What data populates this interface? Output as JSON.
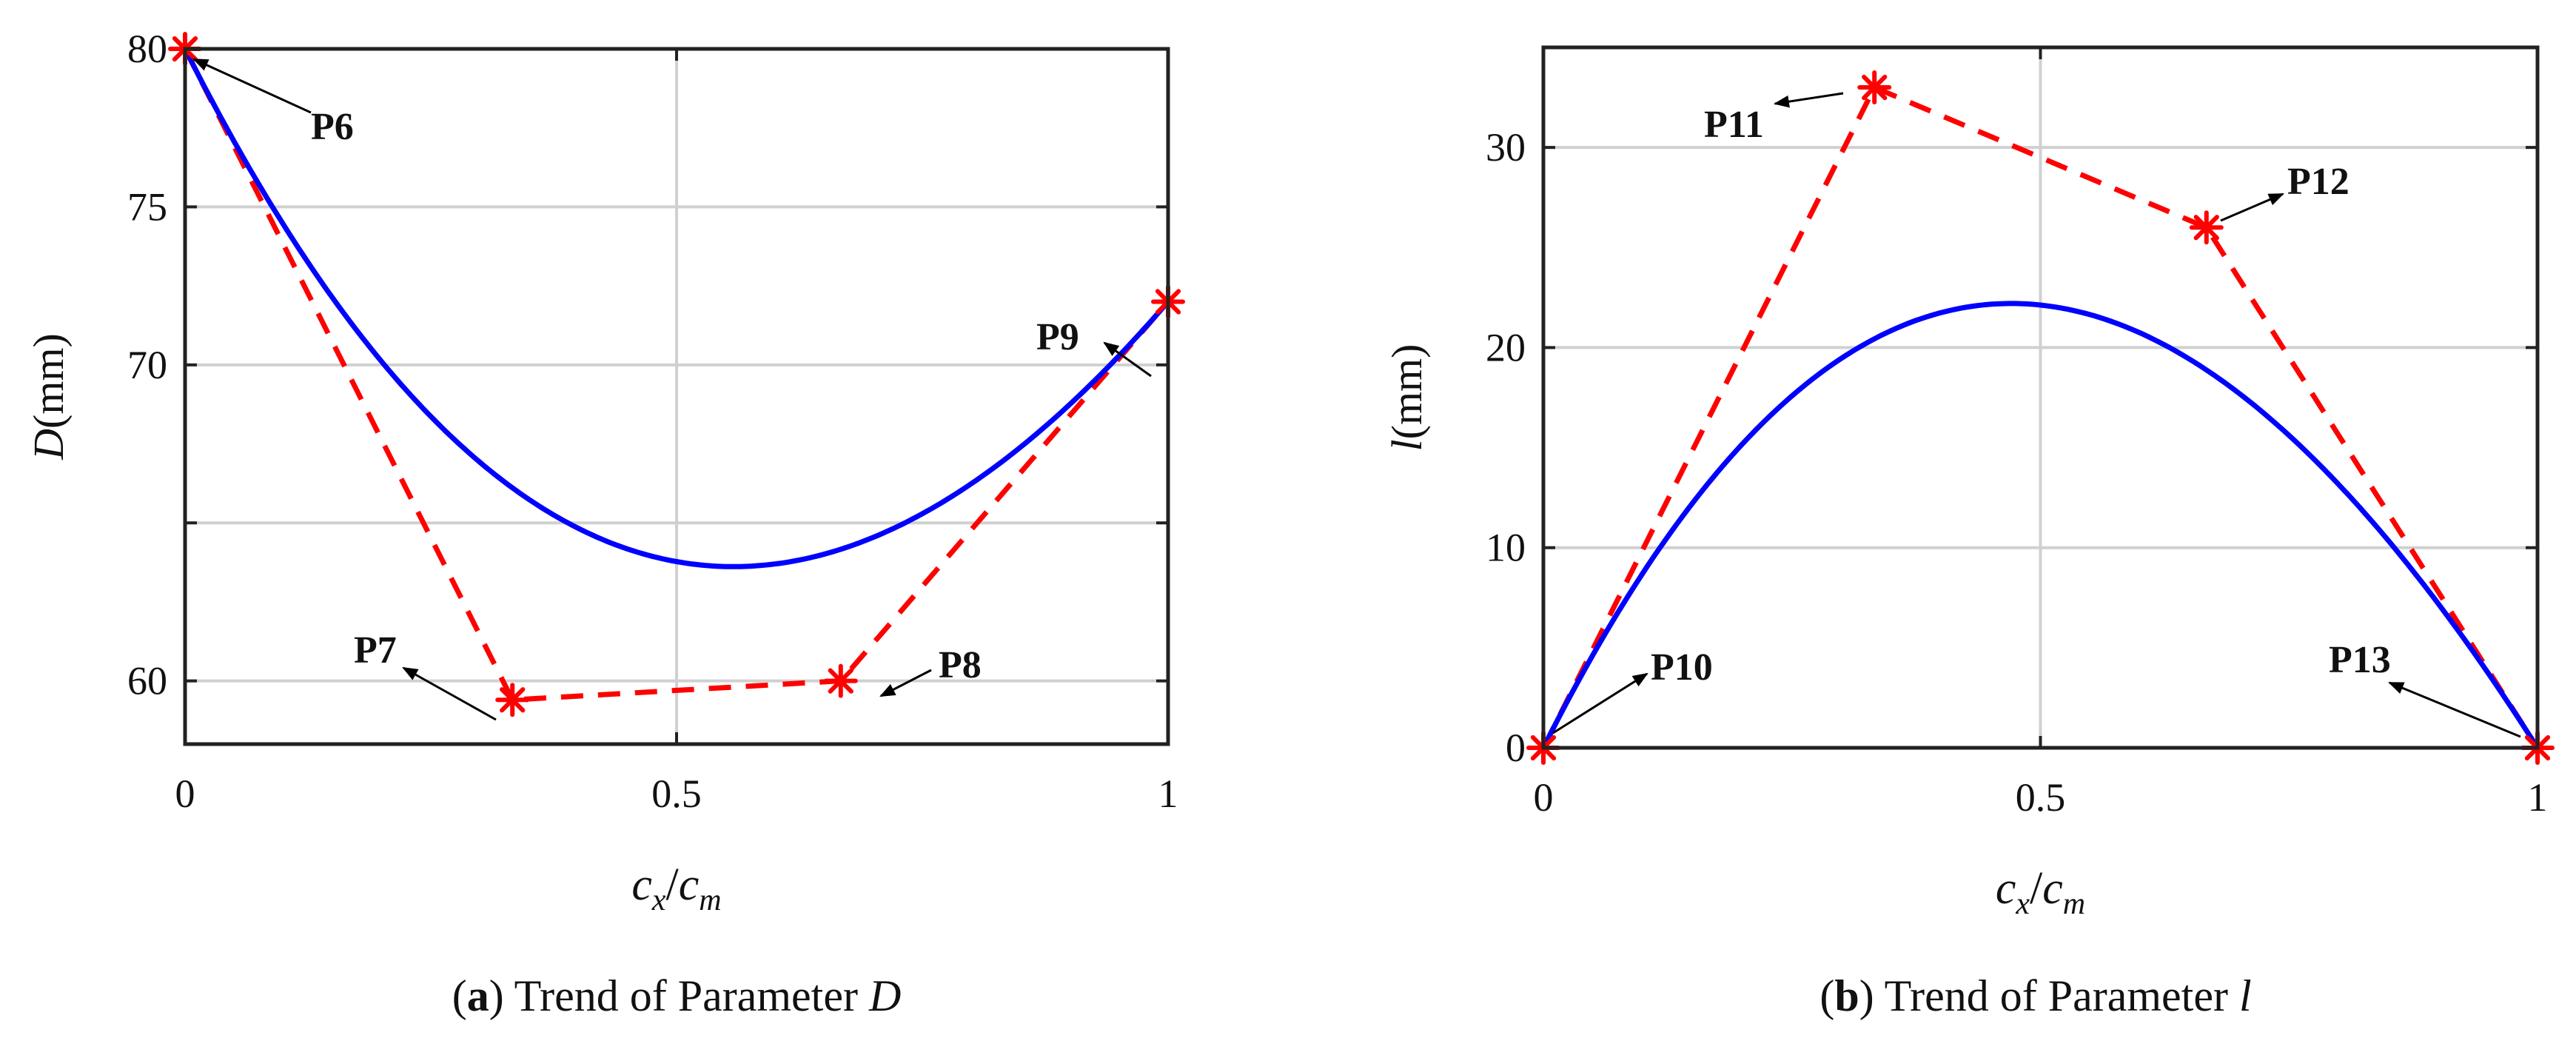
{
  "chart_data": [
    {
      "type": "line",
      "caption": {
        "letter": "a",
        "text": "Trend of Parameter",
        "param": "D"
      },
      "xlabel": {
        "base": "c",
        "sub": "x",
        "sep": "/",
        "base2": "c",
        "sub2": "m"
      },
      "ylabel": {
        "var": "D",
        "unit": "(mm)"
      },
      "xlim": [
        0,
        1
      ],
      "ylim": [
        58,
        80
      ],
      "xticks": [
        0,
        0.5,
        1
      ],
      "xtick_labels": [
        "0",
        "0.5",
        "1"
      ],
      "yticks": [
        60,
        65,
        70,
        75,
        80
      ],
      "ytick_labels": [
        "60",
        "",
        "70",
        "75",
        "80"
      ],
      "grid": true,
      "control_points": [
        {
          "name": "P6",
          "x": 0,
          "y": 80
        },
        {
          "name": "P7",
          "x": 0.333,
          "y": 59.4
        },
        {
          "name": "P8",
          "x": 0.667,
          "y": 60
        },
        {
          "name": "P9",
          "x": 1,
          "y": 72
        }
      ],
      "series": [
        {
          "name": "control polygon",
          "style": "dashed",
          "color": "#ff0000"
        },
        {
          "name": "Bezier curve",
          "style": "solid",
          "color": "#0000ff"
        }
      ]
    },
    {
      "type": "line",
      "caption": {
        "letter": "b",
        "text": "Trend of Parameter",
        "param": "l"
      },
      "xlabel": {
        "base": "c",
        "sub": "x",
        "sep": "/",
        "base2": "c",
        "sub2": "m"
      },
      "ylabel": {
        "var": "l",
        "unit": "(mm)"
      },
      "xlim": [
        0,
        1
      ],
      "ylim": [
        0,
        35
      ],
      "xticks": [
        0,
        0.5,
        1
      ],
      "xtick_labels": [
        "0",
        "0.5",
        "1"
      ],
      "yticks": [
        0,
        10,
        20,
        30
      ],
      "ytick_labels": [
        "0",
        "10",
        "20",
        "30"
      ],
      "grid": true,
      "control_points": [
        {
          "name": "P10",
          "x": 0,
          "y": 0
        },
        {
          "name": "P11",
          "x": 0.333,
          "y": 33
        },
        {
          "name": "P12",
          "x": 0.667,
          "y": 26
        },
        {
          "name": "P13",
          "x": 1,
          "y": 0
        }
      ],
      "series": [
        {
          "name": "control polygon",
          "style": "dashed",
          "color": "#ff0000"
        },
        {
          "name": "Bezier curve",
          "style": "solid",
          "color": "#0000ff"
        }
      ]
    }
  ]
}
